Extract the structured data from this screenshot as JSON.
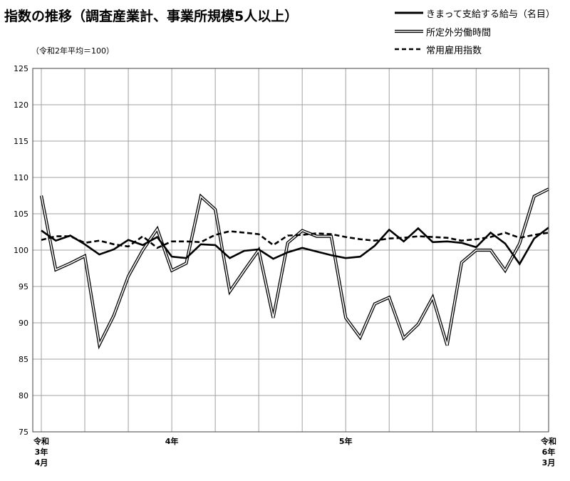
{
  "title": "指数の推移（調査産業計、事業所規模5人以上）",
  "note": "（令和2年平均＝100）",
  "legend": [
    {
      "label": "きまって支給する給与（名目）",
      "style": "solid"
    },
    {
      "label": "所定外労働時間",
      "style": "double"
    },
    {
      "label": "常用雇用指数",
      "style": "dashed"
    }
  ],
  "chart_data": {
    "type": "line",
    "ylim": [
      75,
      125
    ],
    "yticks": [
      75,
      80,
      85,
      90,
      95,
      100,
      105,
      110,
      115,
      120,
      125
    ],
    "x_labels": [
      {
        "index": 0,
        "lines": [
          "令和",
          "3年",
          "4月"
        ]
      },
      {
        "index": 9,
        "lines": [
          "4年"
        ]
      },
      {
        "index": 21,
        "lines": [
          "5年"
        ]
      },
      {
        "index": 35,
        "lines": [
          "令和",
          "6年",
          "3月"
        ]
      }
    ],
    "x_count": 36,
    "grid": true,
    "legend_position": "top-right",
    "series": [
      {
        "name": "きまって支給する給与（名目）",
        "style": "solid",
        "values": [
          102.7,
          101.3,
          102.0,
          100.8,
          99.4,
          100.1,
          101.4,
          100.7,
          101.8,
          99.1,
          98.9,
          100.8,
          100.7,
          98.9,
          99.9,
          100.1,
          98.8,
          99.7,
          100.3,
          99.8,
          99.3,
          98.9,
          99.1,
          100.6,
          102.8,
          101.2,
          103.0,
          101.1,
          101.2,
          101.0,
          100.4,
          102.4,
          100.9,
          98.1,
          101.6,
          103.1
        ]
      },
      {
        "name": "所定外労働時間",
        "style": "double",
        "values": [
          107.5,
          97.3,
          98.2,
          99.2,
          87.0,
          91.0,
          96.4,
          100.0,
          102.9,
          97.2,
          98.2,
          107.4,
          105.6,
          94.3,
          97.2,
          100.0,
          90.7,
          101.0,
          102.7,
          101.9,
          101.9,
          90.7,
          88.0,
          92.6,
          93.5,
          87.9,
          89.8,
          93.5,
          86.9,
          98.3,
          100.0,
          100.0,
          97.2,
          100.9,
          107.4,
          108.4
        ]
      },
      {
        "name": "常用雇用指数",
        "style": "dashed",
        "values": [
          101.4,
          101.9,
          101.9,
          101.0,
          101.3,
          100.8,
          100.5,
          101.9,
          100.3,
          101.2,
          101.2,
          101.1,
          102.1,
          102.6,
          102.4,
          102.2,
          100.7,
          102.0,
          102.1,
          102.3,
          102.2,
          101.8,
          101.5,
          101.3,
          101.6,
          101.7,
          101.9,
          101.8,
          101.7,
          101.3,
          101.5,
          101.8,
          102.4,
          101.7,
          102.1,
          102.4
        ]
      }
    ]
  },
  "colors": {
    "line": "#000000",
    "grid": "#a0a0a0",
    "frame": "#404040",
    "double_fill": "#ffffff"
  }
}
